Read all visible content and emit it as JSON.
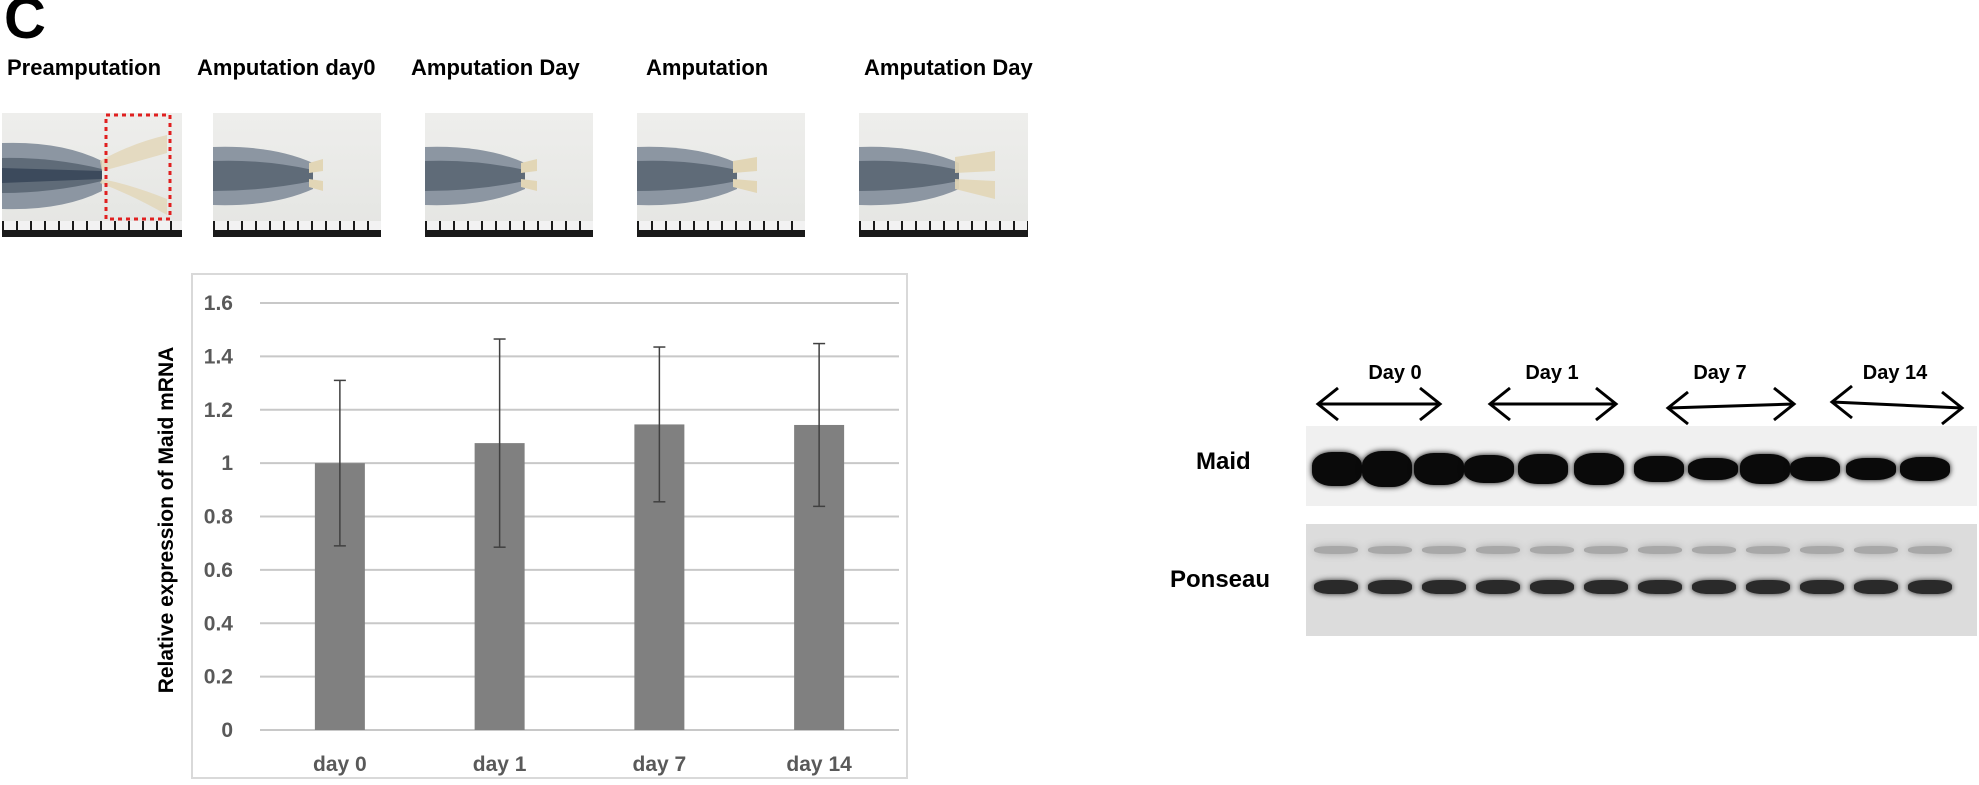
{
  "panel_letter": "C",
  "stage_labels": [
    "Preamputation",
    "Amputation  day0",
    "Amputation  Day",
    "Amputation",
    "Amputation  Day"
  ],
  "chart_data": {
    "type": "bar",
    "categories": [
      "day 0",
      "day 1",
      "day 7",
      "day 14"
    ],
    "values": [
      1.0,
      1.075,
      1.145,
      1.143
    ],
    "error": [
      0.31,
      0.39,
      0.29,
      0.305
    ],
    "ylim": [
      0,
      1.6
    ],
    "yticks": [
      "0",
      "0.2",
      "0.4",
      "0.6",
      "0.8",
      "1",
      "1.2",
      "1.4",
      "1.6"
    ],
    "ytick_values": [
      0,
      0.2,
      0.4,
      0.6,
      0.8,
      1.0,
      1.2,
      1.4,
      1.6
    ],
    "ylabel": "Relative expression of Maid mRNA",
    "xlabel": "",
    "grid": true,
    "bar_color": "#808080"
  },
  "western_blot": {
    "days": [
      "Day 0",
      "Day 1",
      "Day 7",
      "Day 14"
    ],
    "rows": [
      "Maid",
      "Ponseau"
    ]
  }
}
